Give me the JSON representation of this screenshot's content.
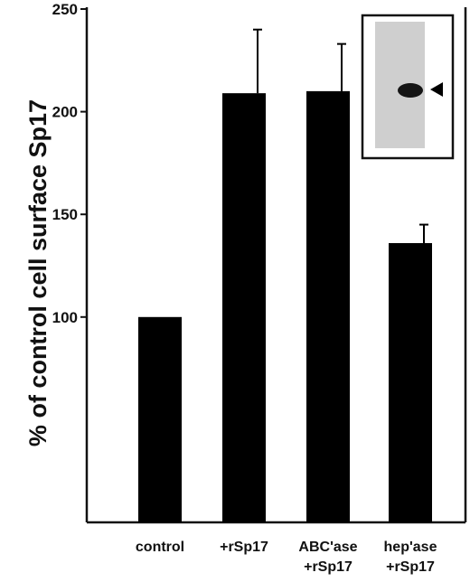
{
  "chart_data": {
    "type": "bar",
    "title": "",
    "xlabel": "",
    "ylabel": "% of control cell surface Sp17",
    "categories": [
      [
        "control"
      ],
      [
        "+rSp17"
      ],
      [
        "ABC'ase",
        "+rSp17"
      ],
      [
        "hep'ase",
        "+rSp17"
      ]
    ],
    "series": [
      {
        "values": [
          100,
          209,
          210,
          136
        ],
        "error": [
          0,
          31,
          23,
          9
        ]
      }
    ],
    "ylim": [
      0,
      255
    ],
    "yticks": [
      100,
      150,
      200,
      250
    ],
    "grid": false,
    "legend": "none",
    "bar_color": "#000000",
    "inset": {
      "content": "western blot band with arrowhead",
      "placement": "top-right",
      "icon": "arrowhead-icon"
    }
  }
}
